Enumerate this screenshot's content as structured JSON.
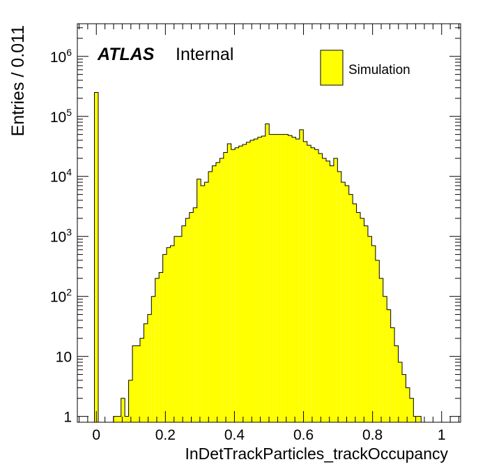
{
  "colors": {
    "fill": "#ffff00",
    "line": "#000000",
    "background": "#ffffff"
  },
  "labels": {
    "atlas": "ATLAS",
    "internal": "Internal",
    "legend": "Simulation",
    "xlabel": "InDetTrackParticles_trackOccupancy",
    "ylabel": "Entries / 0.011"
  },
  "chart_data": {
    "type": "bar",
    "title": "",
    "xlabel": "InDetTrackParticles_trackOccupancy",
    "ylabel": "Entries / 0.011",
    "yscale": "log",
    "xlim": [
      -0.055,
      1.055
    ],
    "ylim": [
      0.8,
      3500000
    ],
    "bin_width": 0.011,
    "grid": false,
    "legend": {
      "position": "top-right",
      "entries": [
        "Simulation"
      ]
    },
    "x_ticks": [
      {
        "value": 0,
        "label": "0"
      },
      {
        "value": 0.2,
        "label": "0.2"
      },
      {
        "value": 0.4,
        "label": "0.4"
      },
      {
        "value": 0.6,
        "label": "0.6"
      },
      {
        "value": 0.8,
        "label": "0.8"
      },
      {
        "value": 1,
        "label": "1"
      }
    ],
    "y_ticks": [
      {
        "value": 1,
        "base": "1",
        "exp": ""
      },
      {
        "value": 10,
        "base": "10",
        "exp": ""
      },
      {
        "value": 100,
        "base": "10",
        "exp": "2"
      },
      {
        "value": 1000,
        "base": "10",
        "exp": "3"
      },
      {
        "value": 10000,
        "base": "10",
        "exp": "4"
      },
      {
        "value": 100000,
        "base": "10",
        "exp": "5"
      },
      {
        "value": 1000000,
        "base": "10",
        "exp": "6"
      }
    ],
    "series": [
      {
        "bin_low": [
          -0.0055,
          0.0495,
          0.0605,
          0.0715,
          0.0825,
          0.0935,
          0.1045,
          0.1155,
          0.1265,
          0.1375,
          0.1485,
          0.1595,
          0.1705,
          0.1815,
          0.1925,
          0.2035,
          0.2145,
          0.2255,
          0.2365,
          0.2475,
          0.2585,
          0.2695,
          0.2805,
          0.2915,
          0.3025,
          0.3135,
          0.3245,
          0.3355,
          0.3465,
          0.3575,
          0.3685,
          0.3795,
          0.3905,
          0.4015,
          0.4125,
          0.4235,
          0.4345,
          0.4455,
          0.4565,
          0.4675,
          0.4785,
          0.4895,
          0.5005,
          0.5115,
          0.5225,
          0.5335,
          0.5445,
          0.5555,
          0.5665,
          0.5775,
          0.5885,
          0.5995,
          0.6105,
          0.6215,
          0.6325,
          0.6435,
          0.6545,
          0.6655,
          0.6765,
          0.6875,
          0.6985,
          0.7095,
          0.7205,
          0.7315,
          0.7425,
          0.7535,
          0.7645,
          0.7755,
          0.7865,
          0.7975,
          0.8085,
          0.8195,
          0.8305,
          0.8415,
          0.8525,
          0.8635,
          0.8745,
          0.8855,
          0.8965,
          0.9075,
          0.9185,
          0.9295
        ],
        "values": [
          250000,
          1,
          1,
          2,
          1,
          4,
          15,
          15,
          20,
          35,
          50,
          100,
          200,
          250,
          500,
          650,
          700,
          1000,
          1000,
          1500,
          2000,
          2500,
          3000,
          9000,
          7000,
          8000,
          12000,
          15000,
          17000,
          20000,
          25000,
          35000,
          28000,
          30000,
          32000,
          34000,
          37000,
          40000,
          42000,
          45000,
          47000,
          75000,
          50000,
          50000,
          50000,
          50000,
          50000,
          48000,
          45000,
          42000,
          60000,
          38000,
          33000,
          30000,
          28000,
          24000,
          20000,
          18000,
          15000,
          20000,
          12000,
          8000,
          7000,
          5000,
          3500,
          2500,
          2000,
          1500,
          1000,
          700,
          400,
          200,
          100,
          60,
          30,
          15,
          8,
          5,
          3,
          2,
          1,
          1
        ]
      }
    ]
  }
}
